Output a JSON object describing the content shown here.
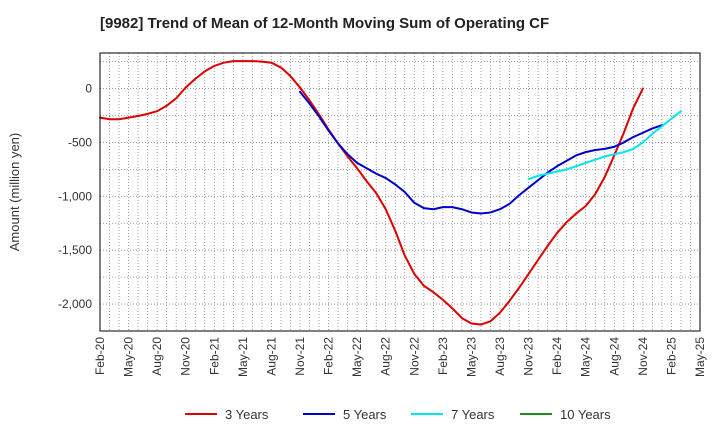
{
  "chart_data": {
    "type": "line",
    "title": "[9982]  Trend of Mean of 12-Month Moving Sum of Operating CF",
    "xlabel": "",
    "ylabel": "Amount (million yen)",
    "ylim": [
      -2250,
      330
    ],
    "yticks": [
      0,
      -500,
      -1000,
      -1500,
      -2000
    ],
    "ytick_labels": [
      "0",
      "-500",
      "-1,000",
      "-1,500",
      "-2,000"
    ],
    "x_start": "Feb-20",
    "x_months": 63,
    "xticks": [
      "Feb-20",
      "May-20",
      "Aug-20",
      "Nov-20",
      "Feb-21",
      "May-21",
      "Aug-21",
      "Nov-21",
      "Feb-22",
      "May-22",
      "Aug-22",
      "Nov-22",
      "Feb-23",
      "May-23",
      "Aug-23",
      "Nov-23",
      "Feb-24",
      "May-24",
      "Aug-24",
      "Nov-24",
      "Feb-25",
      "May-25"
    ],
    "grid": true,
    "legend": "bottom",
    "series": [
      {
        "name": "3 Years",
        "color": "#dd0000",
        "start_index": 0,
        "values": [
          -270,
          -285,
          -285,
          -270,
          -255,
          -235,
          -210,
          -160,
          -90,
          10,
          90,
          160,
          210,
          240,
          255,
          255,
          255,
          250,
          240,
          195,
          115,
          10,
          -110,
          -240,
          -380,
          -510,
          -630,
          -740,
          -860,
          -970,
          -1120,
          -1320,
          -1550,
          -1720,
          -1830,
          -1890,
          -1960,
          -2040,
          -2130,
          -2180,
          -2190,
          -2160,
          -2080,
          -1970,
          -1850,
          -1720,
          -1590,
          -1460,
          -1340,
          -1240,
          -1160,
          -1090,
          -980,
          -820,
          -620,
          -410,
          -180,
          0
        ]
      },
      {
        "name": "5 Years",
        "color": "#0000cc",
        "start_index": 21,
        "values": [
          -30,
          -140,
          -260,
          -390,
          -510,
          -610,
          -690,
          -740,
          -790,
          -830,
          -890,
          -960,
          -1060,
          -1110,
          -1120,
          -1100,
          -1100,
          -1120,
          -1150,
          -1160,
          -1150,
          -1120,
          -1070,
          -990,
          -920,
          -850,
          -780,
          -720,
          -670,
          -620,
          -590,
          -570,
          -560,
          -540,
          -500,
          -450,
          -410,
          -370,
          -340
        ]
      },
      {
        "name": "7 Years",
        "color": "#00e5ee",
        "start_index": 45,
        "values": [
          -840,
          -810,
          -790,
          -770,
          -750,
          -720,
          -690,
          -660,
          -630,
          -610,
          -590,
          -560,
          -500,
          -420,
          -350,
          -280,
          -210
        ]
      },
      {
        "name": "10 Years",
        "color": "#228b22",
        "start_index": 0,
        "values": []
      }
    ]
  }
}
